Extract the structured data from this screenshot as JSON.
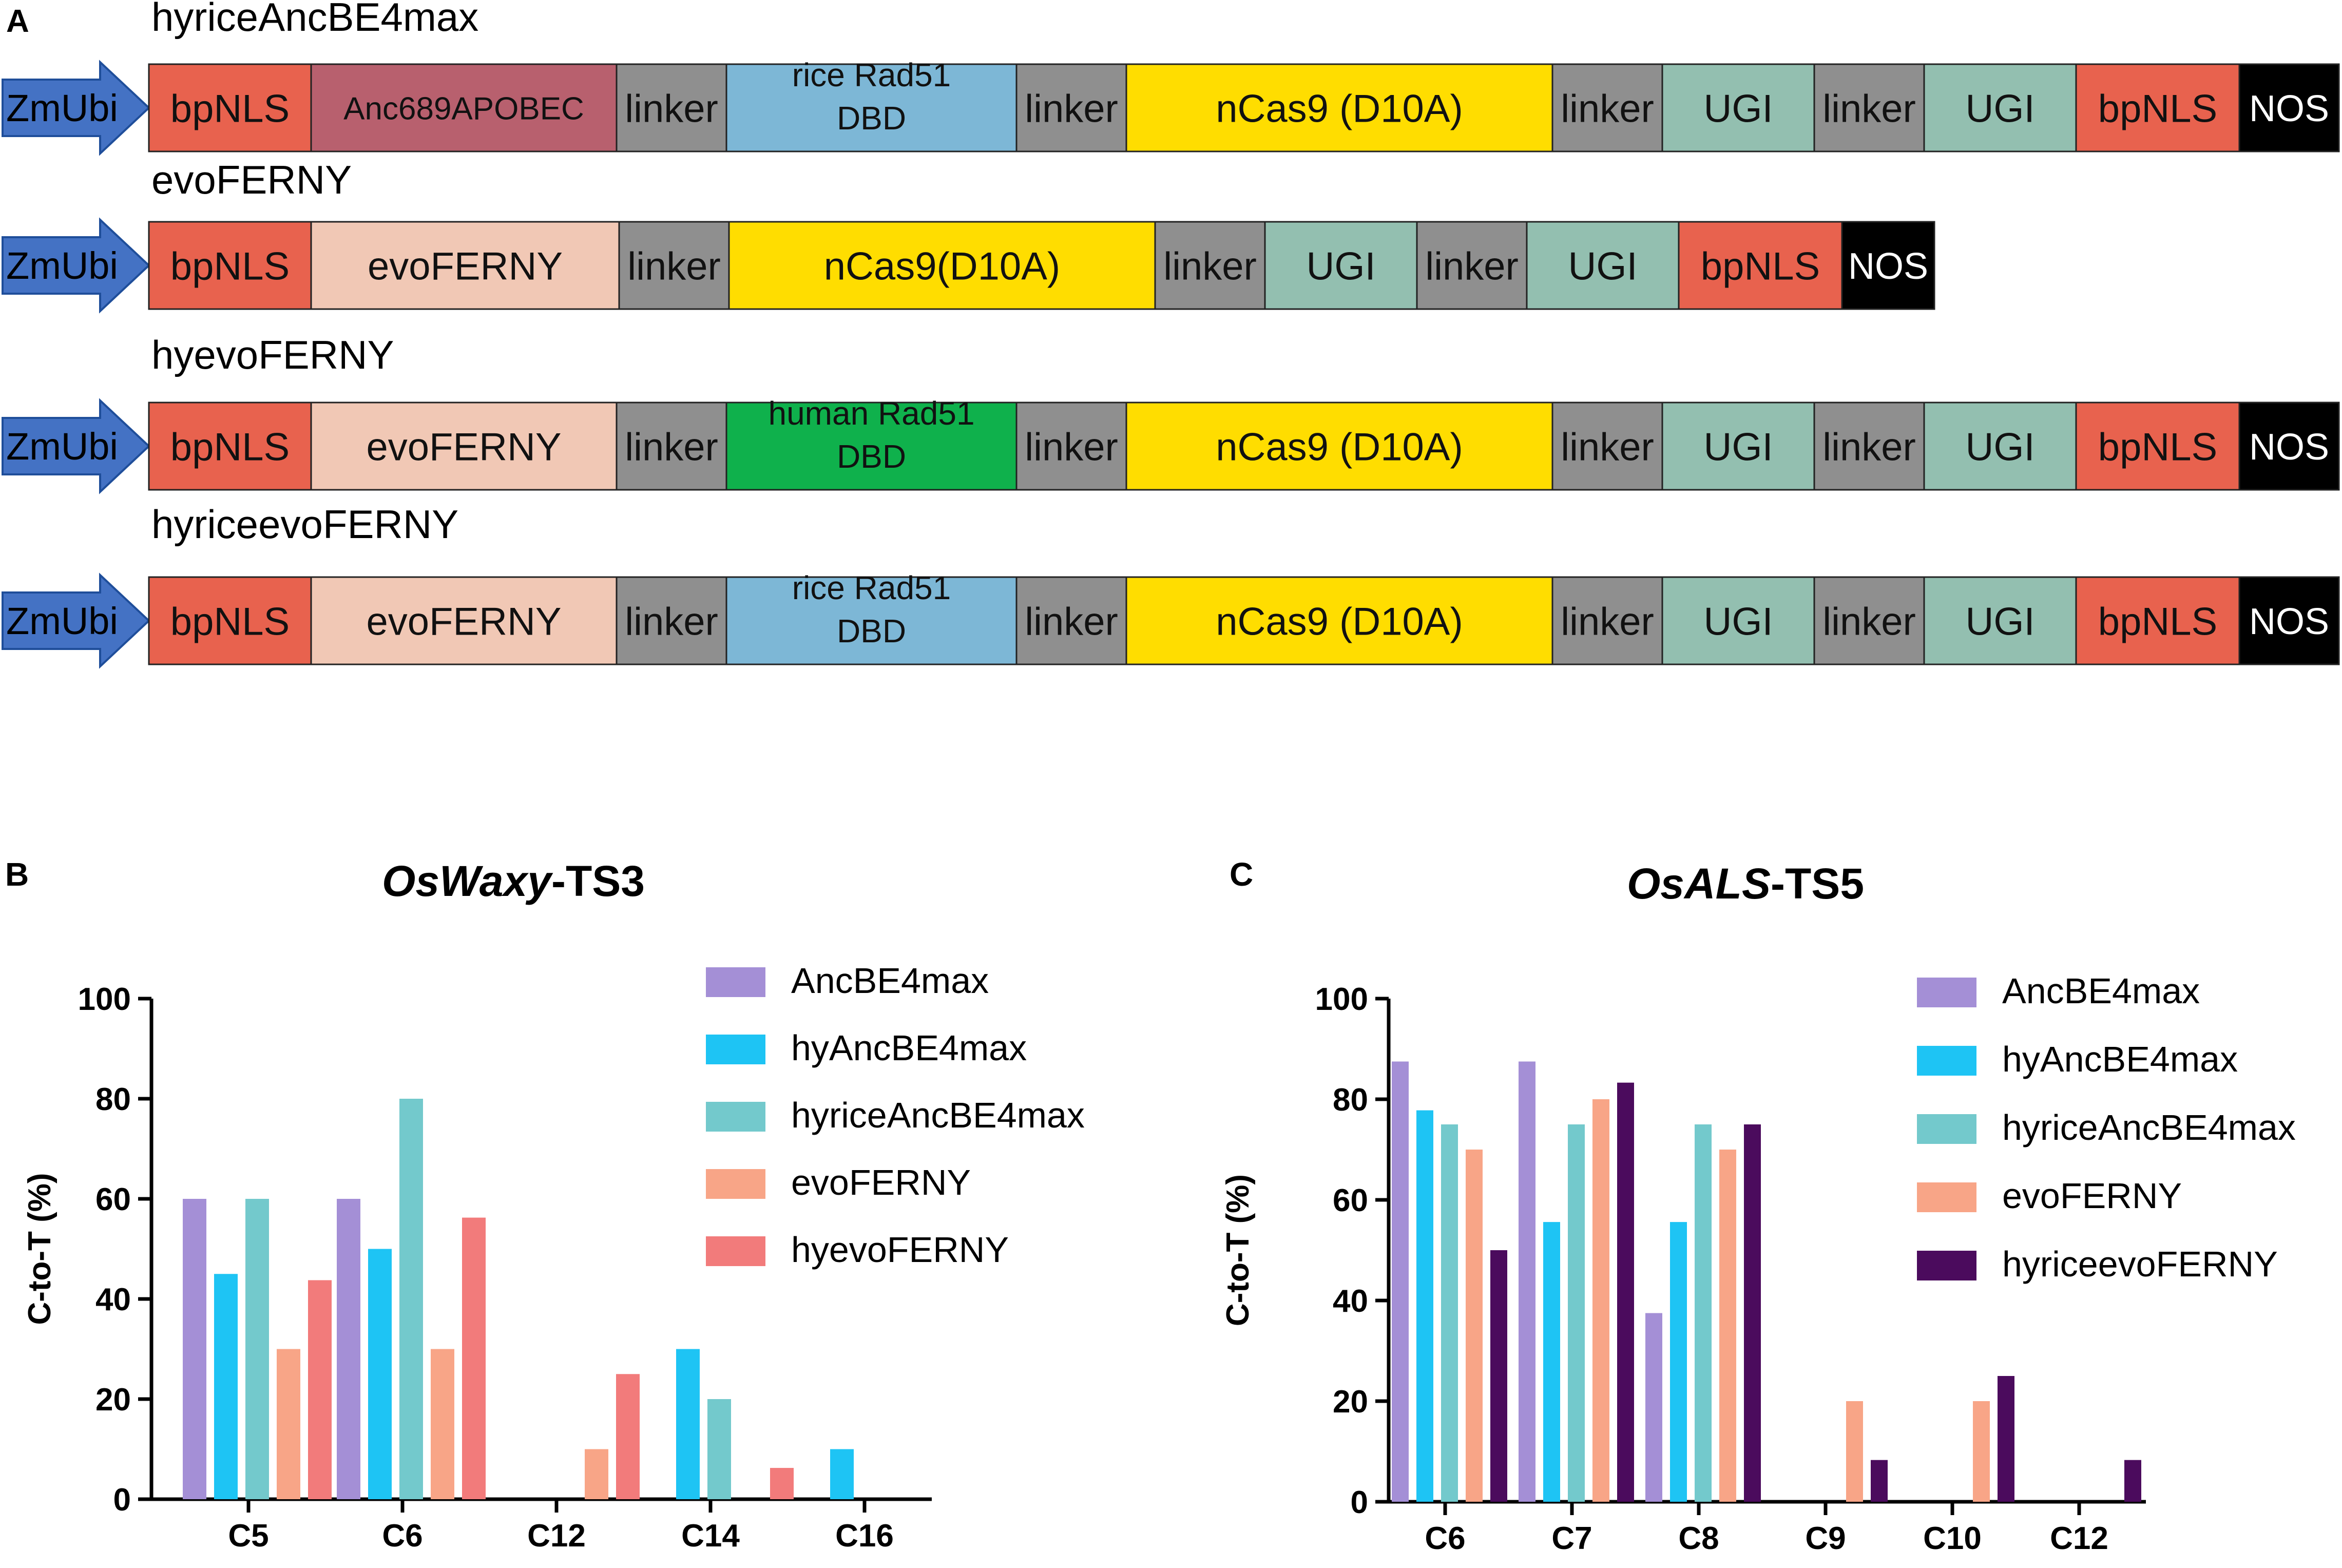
{
  "colors": {
    "bpNLS": "#e8624e",
    "anc": "#b8606e",
    "linker": "#8f8f8f",
    "riceRad51": "#7db7d6",
    "nCas9": "#ffdd00",
    "UGI": "#93bfb0",
    "NOS": "#000000",
    "evoFERNY": "#f1c8b5",
    "humanRad51": "#0fb14c",
    "zmubi": "#4472c4",
    "zmubi_dark": "#1f4e9a",
    "AncBE4max": "#a48fd6",
    "hyAncBE4max": "#1ec4f4",
    "hyriceAncBE4max": "#73c9cc",
    "evoFERNY_series": "#f8a587",
    "hyevoFERNY": "#f27b7b",
    "hyriceevoFERNY": "#4b0b5d"
  },
  "panelA": {
    "label": "A",
    "constructs": [
      {
        "name": "hyriceAncBE4max",
        "promoter": "ZmUbi",
        "segments": [
          {
            "text": "bpNLS",
            "color": "bpNLS"
          },
          {
            "text": "Anc689APOBEC",
            "color": "anc"
          },
          {
            "text": "linker",
            "color": "linker"
          },
          {
            "text": "rice Rad51\nDBD",
            "color": "riceRad51"
          },
          {
            "text": "linker",
            "color": "linker"
          },
          {
            "text": "nCas9 (D10A)",
            "color": "nCas9"
          },
          {
            "text": "linker",
            "color": "linker"
          },
          {
            "text": "UGI",
            "color": "UGI"
          },
          {
            "text": "linker",
            "color": "linker"
          },
          {
            "text": "UGI",
            "color": "UGI"
          },
          {
            "text": "bpNLS",
            "color": "bpNLS"
          },
          {
            "text": "NOS",
            "color": "NOS"
          }
        ]
      },
      {
        "name": "evoFERNY",
        "promoter": "ZmUbi",
        "segments": [
          {
            "text": "bpNLS",
            "color": "bpNLS"
          },
          {
            "text": "evoFERNY",
            "color": "evoFERNY"
          },
          {
            "text": "linker",
            "color": "linker"
          },
          {
            "text": "nCas9(D10A)",
            "color": "nCas9"
          },
          {
            "text": "linker",
            "color": "linker"
          },
          {
            "text": "UGI",
            "color": "UGI"
          },
          {
            "text": "linker",
            "color": "linker"
          },
          {
            "text": "UGI",
            "color": "UGI"
          },
          {
            "text": "bpNLS",
            "color": "bpNLS"
          },
          {
            "text": "NOS",
            "color": "NOS"
          }
        ]
      },
      {
        "name": "hyevoFERNY",
        "promoter": "ZmUbi",
        "segments": [
          {
            "text": "bpNLS",
            "color": "bpNLS"
          },
          {
            "text": "evoFERNY",
            "color": "evoFERNY"
          },
          {
            "text": "linker",
            "color": "linker"
          },
          {
            "text": "human Rad51\nDBD",
            "color": "humanRad51"
          },
          {
            "text": "linker",
            "color": "linker"
          },
          {
            "text": "nCas9 (D10A)",
            "color": "nCas9"
          },
          {
            "text": "linker",
            "color": "linker"
          },
          {
            "text": "UGI",
            "color": "UGI"
          },
          {
            "text": "linker",
            "color": "linker"
          },
          {
            "text": "UGI",
            "color": "UGI"
          },
          {
            "text": "bpNLS",
            "color": "bpNLS"
          },
          {
            "text": "NOS",
            "color": "NOS"
          }
        ]
      },
      {
        "name": "hyriceevoFERNY",
        "promoter": "ZmUbi",
        "segments": [
          {
            "text": "bpNLS",
            "color": "bpNLS"
          },
          {
            "text": "evoFERNY",
            "color": "evoFERNY"
          },
          {
            "text": "linker",
            "color": "linker"
          },
          {
            "text": "rice Rad51\nDBD",
            "color": "riceRad51"
          },
          {
            "text": "linker",
            "color": "linker"
          },
          {
            "text": "nCas9 (D10A)",
            "color": "nCas9"
          },
          {
            "text": "linker",
            "color": "linker"
          },
          {
            "text": "UGI",
            "color": "UGI"
          },
          {
            "text": "linker",
            "color": "linker"
          },
          {
            "text": "UGI",
            "color": "UGI"
          },
          {
            "text": "bpNLS",
            "color": "bpNLS"
          },
          {
            "text": "NOS",
            "color": "NOS"
          }
        ]
      }
    ]
  },
  "chart_data": [
    {
      "panel": "B",
      "type": "bar",
      "title_italic": "OsWaxy",
      "title_rest": "-TS3",
      "ylabel": "C-to-T (%)",
      "xlabel": "",
      "ylim": [
        0,
        100
      ],
      "yticks": [
        0,
        20,
        40,
        60,
        80,
        100
      ],
      "categories": [
        "C5",
        "C6",
        "C12",
        "C14",
        "C16"
      ],
      "legend_position": "top-right",
      "series": [
        {
          "name": "AncBE4max",
          "color": "AncBE4max",
          "values": [
            60,
            60,
            0,
            0,
            0
          ]
        },
        {
          "name": "hyAncBE4max",
          "color": "hyAncBE4max",
          "values": [
            45,
            50,
            0,
            30,
            10
          ]
        },
        {
          "name": "hyriceAncBE4max",
          "color": "hyriceAncBE4max",
          "values": [
            60,
            80,
            0,
            20,
            0
          ]
        },
        {
          "name": "evoFERNY",
          "color": "evoFERNY_series",
          "values": [
            30,
            30,
            10,
            0,
            0
          ]
        },
        {
          "name": "hyevoFERNY",
          "color": "hyevoFERNY",
          "values": [
            43.75,
            56.25,
            25,
            6.25,
            0
          ]
        }
      ]
    },
    {
      "panel": "C",
      "type": "bar",
      "title_italic": "OsALS",
      "title_rest": "-TS5",
      "ylabel": "C-to-T (%)",
      "xlabel": "",
      "ylim": [
        0,
        100
      ],
      "yticks": [
        0,
        20,
        40,
        60,
        80,
        100
      ],
      "categories": [
        "C6",
        "C7",
        "C8",
        "C9",
        "C10",
        "C12"
      ],
      "legend_position": "top-right",
      "series": [
        {
          "name": "AncBE4max",
          "color": "AncBE4max",
          "values": [
            87.5,
            87.5,
            37.5,
            0,
            0,
            0
          ]
        },
        {
          "name": "hyAncBE4max",
          "color": "hyAncBE4max",
          "values": [
            77.8,
            55.6,
            55.6,
            0,
            0,
            0
          ]
        },
        {
          "name": "hyriceAncBE4max",
          "color": "hyriceAncBE4max",
          "values": [
            75,
            75,
            75,
            0,
            0,
            0
          ]
        },
        {
          "name": "evoFERNY",
          "color": "evoFERNY_series",
          "values": [
            70,
            80,
            70,
            20,
            20,
            0
          ]
        },
        {
          "name": "hyriceevoFERNY",
          "color": "hyriceevoFERNY",
          "values": [
            50,
            83.3,
            75,
            8.3,
            25,
            8.3
          ]
        }
      ]
    }
  ]
}
